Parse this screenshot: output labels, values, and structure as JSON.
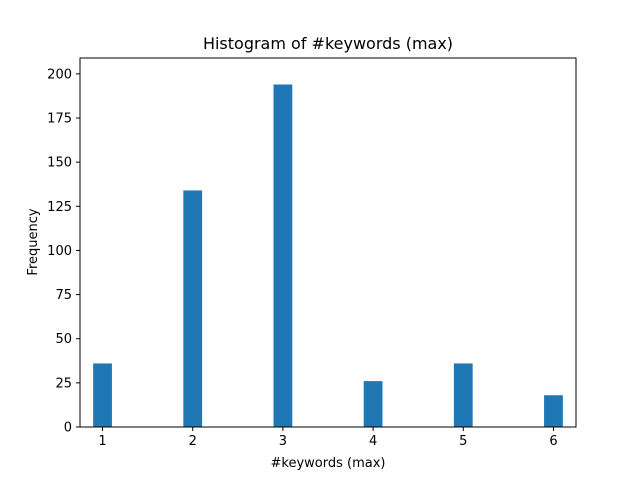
{
  "chart_data": {
    "type": "bar",
    "title": "Histogram of #keywords (max)",
    "xlabel": "#keywords (max)",
    "ylabel": "Frequency",
    "x": [
      1,
      2,
      3,
      4,
      5,
      6
    ],
    "values": [
      36,
      134,
      194,
      26,
      36,
      18
    ],
    "xlim": [
      0.75,
      6.25
    ],
    "ylim": [
      0,
      209
    ],
    "x_ticks": [
      "1",
      "2",
      "3",
      "4",
      "5",
      "6"
    ],
    "y_ticks": [
      "0",
      "25",
      "50",
      "75",
      "100",
      "125",
      "150",
      "175",
      "200"
    ],
    "bar_color": "#1f77b4",
    "grid": false,
    "legend": "none"
  }
}
